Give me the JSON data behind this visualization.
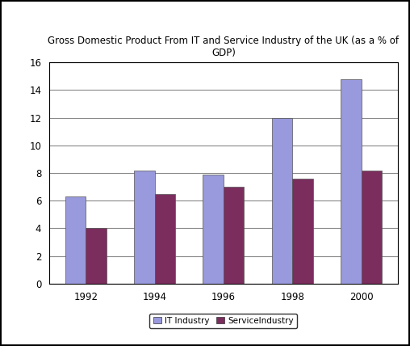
{
  "title": "Gross Domestic Product From IT and Service Industry of the UK (as a % of\nGDP)",
  "years": [
    "1992",
    "1994",
    "1996",
    "1998",
    "2000"
  ],
  "it_values": [
    6.3,
    8.2,
    7.9,
    12.0,
    14.8
  ],
  "service_values": [
    4.0,
    6.5,
    7.0,
    7.6,
    8.2
  ],
  "it_color": "#9999DD",
  "service_color": "#7B2D5E",
  "ylim": [
    0,
    16
  ],
  "yticks": [
    0,
    2,
    4,
    6,
    8,
    10,
    12,
    14,
    16
  ],
  "bar_width": 0.3,
  "legend_labels": [
    "IT Industry",
    "ServiceIndustry"
  ],
  "background_color": "#FFFFFF",
  "grid_color": "#888888",
  "title_fontsize": 8.5,
  "tick_fontsize": 8.5,
  "legend_fontsize": 7.5,
  "outer_border_color": "#000000"
}
